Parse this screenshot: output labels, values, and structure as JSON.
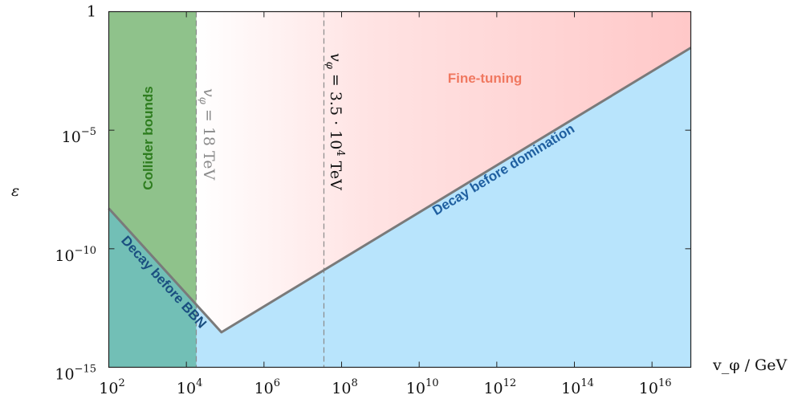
{
  "chart_data": {
    "type": "area",
    "title": "",
    "xlabel": "v_φ / GeV",
    "ylabel": "ε",
    "x_scale": "log",
    "y_scale": "log",
    "xlim": [
      100,
      1e+17
    ],
    "ylim": [
      1e-15,
      1
    ],
    "grid": false,
    "x_ticks": [
      {
        "value": 100,
        "base": "10",
        "exp": "2"
      },
      {
        "value": 10000,
        "base": "10",
        "exp": "4"
      },
      {
        "value": 1000000.0,
        "base": "10",
        "exp": "6"
      },
      {
        "value": 100000000.0,
        "base": "10",
        "exp": "8"
      },
      {
        "value": 10000000000.0,
        "base": "10",
        "exp": "10"
      },
      {
        "value": 1000000000000.0,
        "base": "10",
        "exp": "12"
      },
      {
        "value": 100000000000000.0,
        "base": "10",
        "exp": "14"
      },
      {
        "value": 1e+16,
        "base": "10",
        "exp": "16"
      }
    ],
    "y_ticks": [
      {
        "value": 1,
        "base": "1",
        "exp": ""
      },
      {
        "value": 1e-05,
        "base": "10",
        "exp": "−5"
      },
      {
        "value": 1e-10,
        "base": "10",
        "exp": "−10"
      },
      {
        "value": 1e-15,
        "base": "10",
        "exp": "−15"
      }
    ],
    "boundary_line": {
      "x": [
        100,
        80000,
        1e+17
      ],
      "y": [
        5e-09,
        3e-14,
        0.03
      ]
    },
    "vertical_lines": [
      {
        "x": 18000,
        "label_var": "v",
        "label_sub": "φ",
        "label_value": " = 18 TeV",
        "color": "#8a8a8a"
      },
      {
        "x": 35000000,
        "label_var": "v",
        "label_sub": "φ",
        "label_value": " = 3.5 · 10",
        "label_exp": "4",
        "label_unit": " TeV",
        "color": "#111111"
      }
    ],
    "regions": [
      {
        "name": "Collider bounds",
        "color": "#2e7d1f",
        "fill": "#8fc28b"
      },
      {
        "name": "Fine-tuning",
        "color": "#f07860",
        "fill": "#ffc8c8"
      },
      {
        "name": "Decay before domination",
        "color": "#1f5fa0",
        "fill": "#b8e4fc"
      },
      {
        "name": "Decay before BBN",
        "color": "#1a4f80",
        "fill": "#72bfb6"
      }
    ]
  }
}
